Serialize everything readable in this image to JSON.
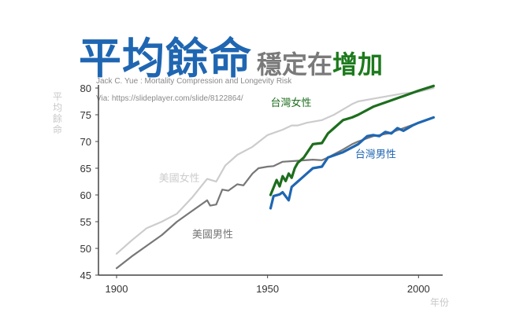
{
  "title": {
    "main": "平均餘命",
    "sub_prefix": "穩定在",
    "sub_accent": "增加"
  },
  "credits": [
    "Jack C. Yue : Mortality Compression and Longevity Risk",
    "Via: https://slideplayer.com/slide/8122864/"
  ],
  "colors": {
    "title_blue": "#1f66b2",
    "us_female": "#cccccc",
    "us_male": "#777777",
    "tw_female": "#1d6e1d",
    "tw_male": "#1f66b2"
  },
  "chart_data": {
    "type": "line",
    "xlabel": "年份",
    "ylabel": "平均餘命",
    "xlim": [
      1894,
      2008
    ],
    "ylim": [
      45,
      80
    ],
    "x_ticks": [
      1900,
      1950,
      2000
    ],
    "y_ticks": [
      45,
      50,
      55,
      60,
      65,
      70,
      75,
      80
    ],
    "grid": false,
    "series": [
      {
        "name": "美國女性",
        "color": "#cccccc",
        "label_x": 1914,
        "label_y": 62.5,
        "points": [
          [
            1900,
            49.0
          ],
          [
            1905,
            51.5
          ],
          [
            1910,
            53.8
          ],
          [
            1915,
            55.0
          ],
          [
            1920,
            56.5
          ],
          [
            1925,
            59.5
          ],
          [
            1930,
            63.0
          ],
          [
            1933,
            62.5
          ],
          [
            1936,
            65.5
          ],
          [
            1940,
            67.5
          ],
          [
            1945,
            69.0
          ],
          [
            1950,
            71.2
          ],
          [
            1955,
            72.2
          ],
          [
            1958,
            73.0
          ],
          [
            1960,
            73.0
          ],
          [
            1963,
            73.5
          ],
          [
            1965,
            73.7
          ],
          [
            1968,
            74.0
          ],
          [
            1970,
            74.5
          ],
          [
            1972,
            75.0
          ],
          [
            1975,
            76.0
          ],
          [
            1978,
            77.0
          ],
          [
            1980,
            77.5
          ],
          [
            1985,
            78.0
          ],
          [
            1990,
            78.5
          ],
          [
            1995,
            79.0
          ],
          [
            2000,
            79.3
          ],
          [
            2005,
            80.0
          ]
        ]
      },
      {
        "name": "美國男性",
        "color": "#777777",
        "label_x": 1925,
        "label_y": 52.0,
        "points": [
          [
            1900,
            46.3
          ],
          [
            1905,
            48.5
          ],
          [
            1910,
            50.5
          ],
          [
            1915,
            52.5
          ],
          [
            1920,
            55.0
          ],
          [
            1925,
            57.0
          ],
          [
            1930,
            59.0
          ],
          [
            1931,
            58.0
          ],
          [
            1933,
            58.2
          ],
          [
            1935,
            61.0
          ],
          [
            1937,
            60.8
          ],
          [
            1940,
            62.0
          ],
          [
            1942,
            61.8
          ],
          [
            1945,
            64.0
          ],
          [
            1947,
            65.0
          ],
          [
            1950,
            65.3
          ],
          [
            1952,
            65.4
          ],
          [
            1955,
            66.2
          ],
          [
            1960,
            66.4
          ],
          [
            1965,
            66.6
          ],
          [
            1968,
            66.5
          ],
          [
            1970,
            67.0
          ],
          [
            1975,
            68.5
          ],
          [
            1978,
            69.5
          ],
          [
            1980,
            70.0
          ],
          [
            1985,
            71.0
          ],
          [
            1990,
            71.5
          ],
          [
            1995,
            72.5
          ],
          [
            2000,
            73.5
          ],
          [
            2005,
            74.5
          ]
        ]
      },
      {
        "name": "台灣女性",
        "color": "#1d6e1d",
        "label_x": 1951,
        "label_y": 76.6,
        "points": [
          [
            1951,
            60.0
          ],
          [
            1953,
            62.8
          ],
          [
            1954,
            61.6
          ],
          [
            1955,
            63.5
          ],
          [
            1956,
            62.6
          ],
          [
            1957,
            64.0
          ],
          [
            1958,
            63.2
          ],
          [
            1959,
            65.0
          ],
          [
            1960,
            66.0
          ],
          [
            1962,
            67.0
          ],
          [
            1965,
            69.5
          ],
          [
            1968,
            69.7
          ],
          [
            1970,
            71.5
          ],
          [
            1972,
            72.5
          ],
          [
            1975,
            74.0
          ],
          [
            1978,
            74.5
          ],
          [
            1980,
            75.0
          ],
          [
            1985,
            76.5
          ],
          [
            1990,
            77.5
          ],
          [
            1995,
            78.5
          ],
          [
            2000,
            79.5
          ],
          [
            2005,
            80.4
          ]
        ]
      },
      {
        "name": "台灣男性",
        "color": "#1f66b2",
        "label_x": 1979,
        "label_y": 67.0,
        "points": [
          [
            1951,
            57.5
          ],
          [
            1952,
            59.8
          ],
          [
            1954,
            60.1
          ],
          [
            1955,
            60.5
          ],
          [
            1957,
            59.0
          ],
          [
            1958,
            61.5
          ],
          [
            1960,
            62.5
          ],
          [
            1963,
            64.0
          ],
          [
            1965,
            65.0
          ],
          [
            1968,
            65.3
          ],
          [
            1970,
            67.0
          ],
          [
            1975,
            68.0
          ],
          [
            1980,
            69.5
          ],
          [
            1983,
            71.0
          ],
          [
            1985,
            71.2
          ],
          [
            1987,
            71.0
          ],
          [
            1989,
            71.8
          ],
          [
            1991,
            71.5
          ],
          [
            1993,
            72.5
          ],
          [
            1995,
            72.0
          ],
          [
            1998,
            73.0
          ],
          [
            2000,
            73.5
          ],
          [
            2005,
            74.5
          ]
        ]
      }
    ]
  }
}
